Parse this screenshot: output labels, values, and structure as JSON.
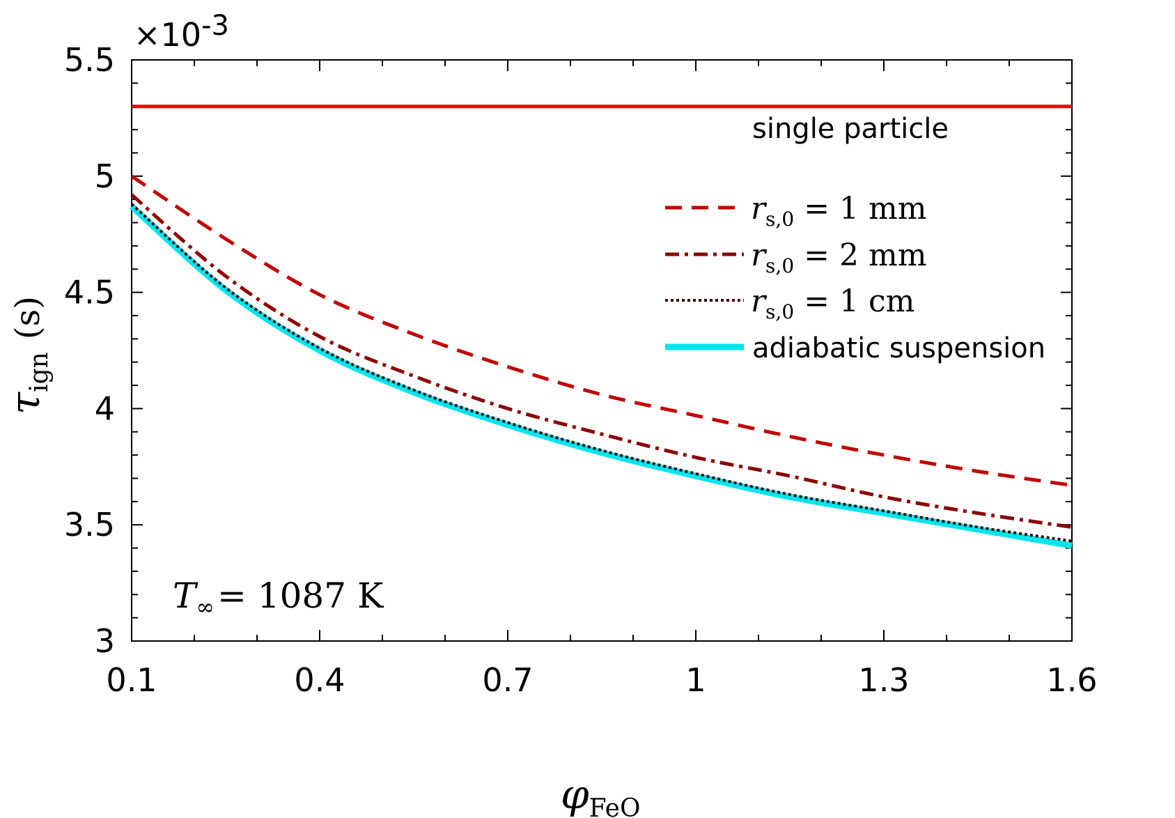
{
  "chart_data": {
    "type": "line",
    "xlabel": "φ",
    "xlabel_sub": "FeO",
    "ylabel": "τ",
    "ylabel_sub": "ign",
    "ylabel_unit": "(s)",
    "y_exponent_label": "×10",
    "y_exponent_power": "-3",
    "xlim": [
      0.1,
      1.6
    ],
    "ylim": [
      3.0,
      5.5
    ],
    "x_ticks": [
      0.1,
      0.4,
      0.7,
      1.0,
      1.3,
      1.6
    ],
    "x_tick_labels": [
      "0.1",
      "0.4",
      "0.7",
      "1",
      "1.3",
      "1.6"
    ],
    "y_ticks": [
      3.0,
      3.5,
      4.0,
      4.5,
      5.0,
      5.5
    ],
    "y_tick_labels": [
      "3",
      "3.5",
      "4",
      "4.5",
      "5",
      "5.5"
    ],
    "grid": false,
    "legend_position": "right",
    "x": [
      0.1,
      0.25,
      0.4,
      0.55,
      0.7,
      0.85,
      1.0,
      1.15,
      1.3,
      1.45,
      1.6
    ],
    "series": [
      {
        "name": "single particle",
        "color": "#ff0000",
        "style": "solid",
        "values": [
          5.3,
          5.3,
          5.3,
          5.3,
          5.3,
          5.3,
          5.3,
          5.3,
          5.3,
          5.3,
          5.3
        ]
      },
      {
        "name": "r_s,0 = 1 mm",
        "color": "#c00000",
        "style": "dashed",
        "values": [
          5.0,
          4.73,
          4.49,
          4.32,
          4.18,
          4.06,
          3.97,
          3.88,
          3.8,
          3.73,
          3.67
        ]
      },
      {
        "name": "r_s,0 = 2 mm",
        "color": "#8b0000",
        "style": "dashdot",
        "values": [
          4.92,
          4.57,
          4.31,
          4.14,
          4.0,
          3.89,
          3.79,
          3.71,
          3.62,
          3.55,
          3.49
        ]
      },
      {
        "name": "r_s,0 = 1 cm",
        "color": "#3a0000",
        "style": "dotted",
        "values": [
          4.88,
          4.52,
          4.26,
          4.08,
          3.94,
          3.82,
          3.72,
          3.63,
          3.56,
          3.49,
          3.43
        ]
      },
      {
        "name": "adiabatic suspension",
        "color": "#00e5ee",
        "style": "solid-thick",
        "values": [
          4.87,
          4.51,
          4.25,
          4.07,
          3.93,
          3.81,
          3.71,
          3.62,
          3.55,
          3.48,
          3.41
        ]
      }
    ],
    "annotations": {
      "single_particle_label": "single particle",
      "temperature_symbol": "T",
      "temperature_sub": "∞",
      "temperature_value": "= 1087 K"
    },
    "legend": [
      {
        "symbol": "r",
        "sub": "s,0",
        "text": "= 1 mm",
        "series": 1
      },
      {
        "symbol": "r",
        "sub": "s,0",
        "text": "= 2 mm",
        "series": 2
      },
      {
        "symbol": "r",
        "sub": "s,0",
        "text": "= 1 cm",
        "series": 3
      },
      {
        "text": "adiabatic suspension",
        "series": 4
      }
    ]
  }
}
